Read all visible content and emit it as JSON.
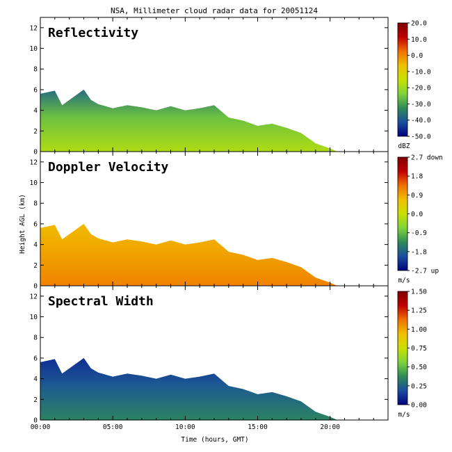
{
  "chart_data": {
    "type": "heatmap",
    "title": "NSA, Millimeter cloud radar data for 20051124",
    "xlabel": "Time (hours, GMT)",
    "ylabel": "Height AGL (km)",
    "xlim": [
      0,
      24
    ],
    "ylim": [
      0,
      13
    ],
    "x_ticks": [
      {
        "value": 0,
        "label": "00:00"
      },
      {
        "value": 5,
        "label": "05:00"
      },
      {
        "value": 10,
        "label": "10:00"
      },
      {
        "value": 15,
        "label": "15:00"
      },
      {
        "value": 20,
        "label": "20:00"
      }
    ],
    "y_ticks": [
      {
        "value": 0,
        "label": "0"
      },
      {
        "value": 2,
        "label": "2"
      },
      {
        "value": 4,
        "label": "4"
      },
      {
        "value": 6,
        "label": "6"
      },
      {
        "value": 8,
        "label": "8"
      },
      {
        "value": 10,
        "label": "10"
      },
      {
        "value": 12,
        "label": "12"
      }
    ],
    "cloud_top_km": [
      [
        0,
        5.6
      ],
      [
        1,
        5.9
      ],
      [
        1.5,
        4.5
      ],
      [
        2,
        5.0
      ],
      [
        3,
        6.0
      ],
      [
        3.5,
        5.0
      ],
      [
        4,
        4.6
      ],
      [
        5,
        4.2
      ],
      [
        6,
        4.5
      ],
      [
        7,
        4.3
      ],
      [
        8,
        4.0
      ],
      [
        9,
        4.4
      ],
      [
        10,
        4.0
      ],
      [
        11,
        4.2
      ],
      [
        12,
        4.5
      ],
      [
        13,
        3.3
      ],
      [
        14,
        3.0
      ],
      [
        15,
        2.5
      ],
      [
        16,
        2.7
      ],
      [
        17,
        2.3
      ],
      [
        18,
        1.8
      ],
      [
        19,
        0.8
      ],
      [
        20,
        0.3
      ],
      [
        20.5,
        0.0
      ]
    ],
    "panels": [
      {
        "name": "Reflectivity",
        "colorbar_unit": "dBZ",
        "colorbar_labels": [
          "20.0",
          "10.0",
          "0.0",
          "-10.0",
          "-20.0",
          "-30.0",
          "-40.0",
          "-50.0"
        ],
        "colorbar_range": [
          -50,
          20
        ],
        "colormap": [
          "#00007f",
          "#1a4fa0",
          "#2e8b57",
          "#7fd33a",
          "#c8e000",
          "#f0c000",
          "#f07000",
          "#c00000",
          "#800000"
        ],
        "top_value": -38,
        "upper_value": -26,
        "lower_value": -18
      },
      {
        "name": "Doppler Velocity",
        "colorbar_unit": "m/s",
        "colorbar_labels": [
          "2.7 down",
          "1.8",
          "0.9",
          "0.0",
          "-0.9",
          "-1.8",
          "-2.7 up"
        ],
        "colorbar_range": [
          -2.7,
          2.7
        ],
        "colormap": [
          "#00007f",
          "#1a4fa0",
          "#2e8b57",
          "#7fd33a",
          "#c8e000",
          "#f0c000",
          "#f07000",
          "#c00000",
          "#800000"
        ],
        "top_value": 0.7,
        "upper_value": 0.9,
        "lower_value": 1.2
      },
      {
        "name": "Spectral Width",
        "colorbar_unit": "m/s",
        "colorbar_labels": [
          "1.50",
          "1.25",
          "1.00",
          "0.75",
          "0.50",
          "0.25",
          "0.00"
        ],
        "colorbar_range": [
          0,
          1.5
        ],
        "colormap": [
          "#00007f",
          "#1a4fa0",
          "#2e8b57",
          "#7fd33a",
          "#c8e000",
          "#f0c000",
          "#f07000",
          "#c00000",
          "#800000"
        ],
        "top_value": 0.1,
        "upper_value": 0.22,
        "lower_value": 0.35
      }
    ]
  }
}
